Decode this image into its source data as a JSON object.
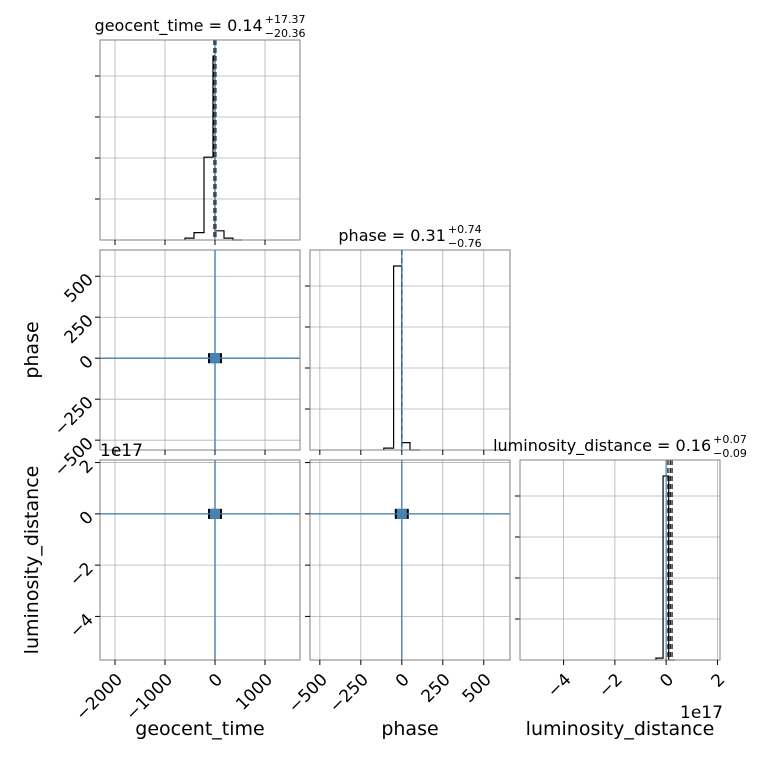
{
  "chart_data": {
    "type": "corner",
    "parameters": [
      "geocent_time",
      "phase",
      "luminosity_distance"
    ],
    "titles": [
      {
        "param": "geocent_time",
        "median": "0.14",
        "plus": "+17.37",
        "minus": "−20.36"
      },
      {
        "param": "phase",
        "median": "0.31",
        "plus": "+0.74",
        "minus": "−0.76"
      },
      {
        "param": "luminosity_distance",
        "median": "0.16",
        "plus": "+0.07",
        "minus": "−0.09"
      }
    ],
    "ranges": {
      "geocent_time": [
        -2300,
        1700
      ],
      "phase": [
        -560,
        660
      ],
      "luminosity_distance": [
        -5.7,
        2.1
      ]
    },
    "ticks": {
      "geocent_time": [
        -2000,
        -1000,
        0,
        1000
      ],
      "phase": [
        -500,
        -250,
        0,
        250,
        500
      ],
      "luminosity_distance": [
        -4,
        -2,
        0,
        2
      ]
    },
    "tick_labels": {
      "geocent_time": [
        "−2000",
        "−1000",
        "0",
        "1000"
      ],
      "phase": [
        "−500",
        "−250",
        "0",
        "250",
        "500"
      ],
      "luminosity_distance": [
        "−4",
        "−2",
        "0",
        "2"
      ]
    },
    "offset_text": "1e17",
    "histograms": {
      "geocent_time": {
        "bin_edges": [
          -600,
          -420,
          -220,
          -40,
          0,
          180,
          360,
          540
        ],
        "counts": [
          0.01,
          0.04,
          0.45,
          1.0,
          0.05,
          0.01,
          0.0
        ],
        "truth": 0,
        "quantiles": [
          -20.2,
          0.14,
          17.5
        ]
      },
      "phase": {
        "bin_edges": [
          -110,
          -50,
          0,
          50,
          110
        ],
        "counts": [
          0.01,
          1.0,
          0.04,
          0.0
        ],
        "truth": 0,
        "quantiles": [
          -0.45,
          0.31,
          1.05
        ]
      },
      "luminosity_distance": {
        "bin_edges": [
          -0.4,
          -0.12,
          0.1,
          0.35
        ],
        "counts": [
          0.01,
          1.0,
          0.0
        ],
        "truth": 0,
        "quantiles": [
          0.07,
          0.16,
          0.23
        ]
      }
    },
    "scatter_center": {
      "geocent_time": 0,
      "phase": 0,
      "luminosity_distance": 0
    },
    "truth_color": "#4682b4",
    "hist_color": "#000000",
    "grid": true
  }
}
